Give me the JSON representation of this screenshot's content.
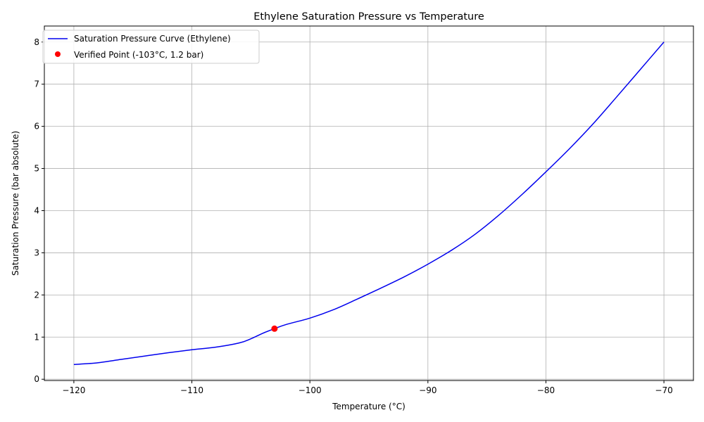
{
  "chart_data": {
    "type": "line",
    "title": "Ethylene Saturation Pressure vs Temperature",
    "xlabel": "Temperature (°C)",
    "ylabel": "Saturation Pressure (bar absolute)",
    "xlim": [
      -122.5,
      -67.5
    ],
    "ylim": [
      -0.03,
      8.38
    ],
    "xticks": [
      -120,
      -110,
      -100,
      -90,
      -80,
      -70
    ],
    "yticks": [
      0,
      1,
      2,
      3,
      4,
      5,
      6,
      7,
      8
    ],
    "xtick_labels": [
      "−120",
      "−110",
      "−100",
      "−90",
      "−80",
      "−70"
    ],
    "ytick_labels": [
      "0",
      "1",
      "2",
      "3",
      "4",
      "5",
      "6",
      "7",
      "8"
    ],
    "grid": true,
    "legend_position": "top-left",
    "series": [
      {
        "name": "Saturation Pressure Curve (Ethylene)",
        "kind": "line",
        "color": "#0000ee",
        "x": [
          -120,
          -118,
          -116,
          -114,
          -112,
          -110,
          -108,
          -106,
          -105,
          -104,
          -103,
          -102,
          -100,
          -98,
          -96,
          -94,
          -92,
          -90,
          -88,
          -86,
          -84,
          -82,
          -80,
          -78,
          -76,
          -74,
          -72,
          -70
        ],
        "y": [
          0.35,
          0.39,
          0.47,
          0.55,
          0.63,
          0.7,
          0.76,
          0.86,
          0.96,
          1.09,
          1.2,
          1.3,
          1.45,
          1.65,
          1.9,
          2.16,
          2.43,
          2.73,
          3.06,
          3.44,
          3.89,
          4.39,
          4.92,
          5.47,
          6.06,
          6.7,
          7.35,
          8.0
        ]
      },
      {
        "name": "Verified Point (-103°C, 1.2 bar)",
        "kind": "scatter",
        "color": "#ff0000",
        "x": [
          -103
        ],
        "y": [
          1.2
        ]
      }
    ]
  }
}
